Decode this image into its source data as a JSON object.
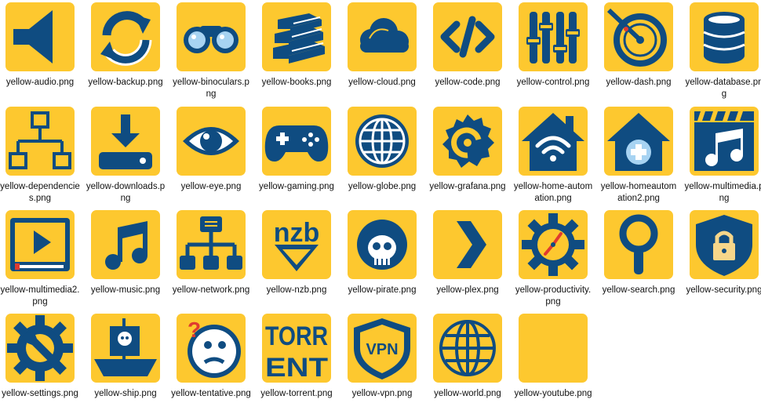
{
  "colors": {
    "tile": "#FDC82F",
    "icon": "#0F4C81",
    "accent": "#E03A2F",
    "white": "#FFFFFF"
  },
  "files": [
    {
      "name": "yellow-audio.png",
      "icon": "speaker-icon"
    },
    {
      "name": "yellow-backup.png",
      "icon": "sync-arrows-icon"
    },
    {
      "name": "yellow-binoculars.png",
      "icon": "binoculars-icon"
    },
    {
      "name": "yellow-books.png",
      "icon": "books-icon"
    },
    {
      "name": "yellow-cloud.png",
      "icon": "cloud-icon"
    },
    {
      "name": "yellow-code.png",
      "icon": "code-icon"
    },
    {
      "name": "yellow-control.png",
      "icon": "sliders-icon"
    },
    {
      "name": "yellow-dash.png",
      "icon": "gauge-icon"
    },
    {
      "name": "yellow-database.png",
      "icon": "database-icon"
    },
    {
      "name": "yellow-dependencies.png",
      "icon": "hierarchy-icon"
    },
    {
      "name": "yellow-downloads.png",
      "icon": "download-tray-icon"
    },
    {
      "name": "yellow-eye.png",
      "icon": "eye-icon"
    },
    {
      "name": "yellow-gaming.png",
      "icon": "gamepad-icon"
    },
    {
      "name": "yellow-globe.png",
      "icon": "globe-icon"
    },
    {
      "name": "yellow-grafana.png",
      "icon": "grafana-icon"
    },
    {
      "name": "yellow-home-automation.png",
      "icon": "home-wifi-icon"
    },
    {
      "name": "yellow-homeautomation2.png",
      "icon": "home-plus-icon"
    },
    {
      "name": "yellow-multimedia.png",
      "icon": "music-clapper-icon"
    },
    {
      "name": "yellow-multimedia2.png",
      "icon": "video-player-icon"
    },
    {
      "name": "yellow-music.png",
      "icon": "music-note-icon"
    },
    {
      "name": "yellow-network.png",
      "icon": "network-icon"
    },
    {
      "name": "yellow-nzb.png",
      "icon": "nzb-icon"
    },
    {
      "name": "yellow-pirate.png",
      "icon": "pirate-skull-icon"
    },
    {
      "name": "yellow-plex.png",
      "icon": "chevron-right-icon"
    },
    {
      "name": "yellow-productivity.png",
      "icon": "gear-clock-icon"
    },
    {
      "name": "yellow-search.png",
      "icon": "magnifier-icon"
    },
    {
      "name": "yellow-security.png",
      "icon": "shield-lock-icon"
    },
    {
      "name": "yellow-settings.png",
      "icon": "gear-wrench-icon"
    },
    {
      "name": "yellow-ship.png",
      "icon": "pirate-ship-icon"
    },
    {
      "name": "yellow-tentative.png",
      "icon": "tentative-face-icon"
    },
    {
      "name": "yellow-torrent.png",
      "icon": "torrent-text-icon"
    },
    {
      "name": "yellow-vpn.png",
      "icon": "vpn-shield-icon"
    },
    {
      "name": "yellow-world.png",
      "icon": "world-icon"
    },
    {
      "name": "yellow-youtube.png",
      "icon": "blank-icon"
    }
  ],
  "icon_text": {
    "nzb": "nzb",
    "torrent_top": "TORR",
    "torrent_bottom": "ENT",
    "vpn": "VPN"
  }
}
